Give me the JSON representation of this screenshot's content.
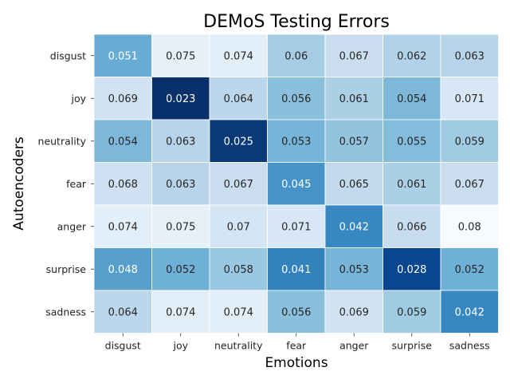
{
  "chart_data": {
    "type": "heatmap",
    "title": "DEMoS Testing Errors",
    "xlabel": "Emotions",
    "ylabel": "Autoencoders",
    "x_categories": [
      "disgust",
      "joy",
      "neutrality",
      "fear",
      "anger",
      "surprise",
      "sadness"
    ],
    "y_categories": [
      "disgust",
      "joy",
      "neutrality",
      "fear",
      "anger",
      "surprise",
      "sadness"
    ],
    "values": [
      [
        "0.051",
        "0.075",
        "0.074",
        "0.06",
        "0.067",
        "0.062",
        "0.063"
      ],
      [
        "0.069",
        "0.023",
        "0.064",
        "0.056",
        "0.061",
        "0.054",
        "0.071"
      ],
      [
        "0.054",
        "0.063",
        "0.025",
        "0.053",
        "0.057",
        "0.055",
        "0.059"
      ],
      [
        "0.068",
        "0.063",
        "0.067",
        "0.045",
        "0.065",
        "0.061",
        "0.067"
      ],
      [
        "0.074",
        "0.075",
        "0.07",
        "0.071",
        "0.042",
        "0.066",
        "0.08"
      ],
      [
        "0.048",
        "0.052",
        "0.058",
        "0.041",
        "0.053",
        "0.028",
        "0.052"
      ],
      [
        "0.064",
        "0.074",
        "0.074",
        "0.056",
        "0.069",
        "0.059",
        "0.042"
      ]
    ],
    "colormap": "Blues_r",
    "colorbar": false,
    "grid": false
  }
}
